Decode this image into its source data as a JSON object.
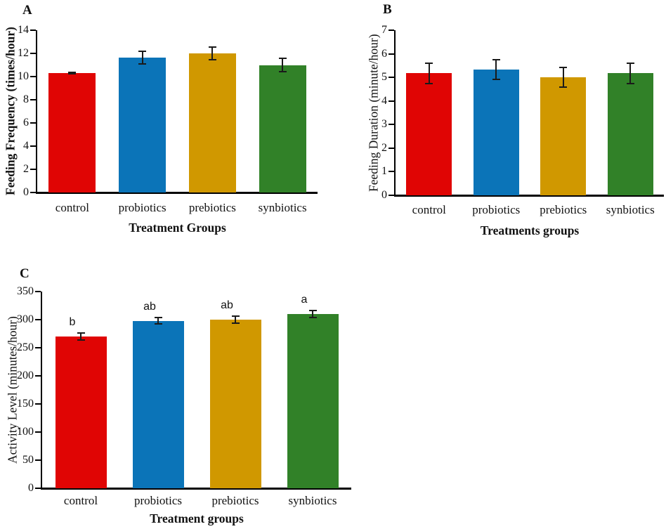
{
  "figure": {
    "background": "#ffffff",
    "palette": {
      "control": "#e00504",
      "probiotics": "#0b74b8",
      "prebiotics": "#d09800",
      "synbiotics": "#318128",
      "error_bar": "#1a1a1a",
      "axis": "#000000"
    }
  },
  "chart_data": [
    {
      "type": "bar",
      "panel": "A",
      "ylabel": "Feeding Frequency (times/hour)",
      "ylabel_bold": true,
      "xlabel": "Treatment Groups",
      "ylim": [
        0,
        14
      ],
      "ystep": 2,
      "grid": false,
      "legend": "none",
      "categories": [
        "control",
        "probiotics",
        "prebiotics",
        "synbiotics"
      ],
      "values": [
        10.33,
        11.65,
        12.0,
        11.0
      ],
      "errors": [
        0.12,
        0.62,
        0.62,
        0.62
      ],
      "sig_letters": null,
      "bar_colors": [
        "#e00504",
        "#0b74b8",
        "#d09800",
        "#318128"
      ]
    },
    {
      "type": "bar",
      "panel": "B",
      "ylabel": "Feeding Duration (minute/hour)",
      "ylabel_bold": false,
      "xlabel": "Treatments groups",
      "ylim": [
        0,
        7
      ],
      "ystep": 1,
      "grid": false,
      "legend": "none",
      "categories": [
        "control",
        "probiotics",
        "prebiotics",
        "synbiotics"
      ],
      "values": [
        5.17,
        5.33,
        5.0,
        5.17
      ],
      "errors": [
        0.45,
        0.45,
        0.45,
        0.45
      ],
      "sig_letters": null,
      "bar_colors": [
        "#e00504",
        "#0b74b8",
        "#d09800",
        "#318128"
      ]
    },
    {
      "type": "bar",
      "panel": "C",
      "ylabel": "Activity Level (minutes/hour)",
      "ylabel_bold": false,
      "xlabel": "Treatment groups",
      "ylim": [
        0,
        350
      ],
      "ystep": 50,
      "grid": false,
      "legend": "none",
      "categories": [
        "control",
        "probiotics",
        "prebiotics",
        "synbiotics"
      ],
      "values": [
        270,
        298,
        300,
        310
      ],
      "errors": [
        8,
        7,
        7,
        7
      ],
      "sig_letters": [
        "b",
        "ab",
        "ab",
        "a"
      ],
      "bar_colors": [
        "#e00504",
        "#0b74b8",
        "#d09800",
        "#318128"
      ]
    }
  ]
}
